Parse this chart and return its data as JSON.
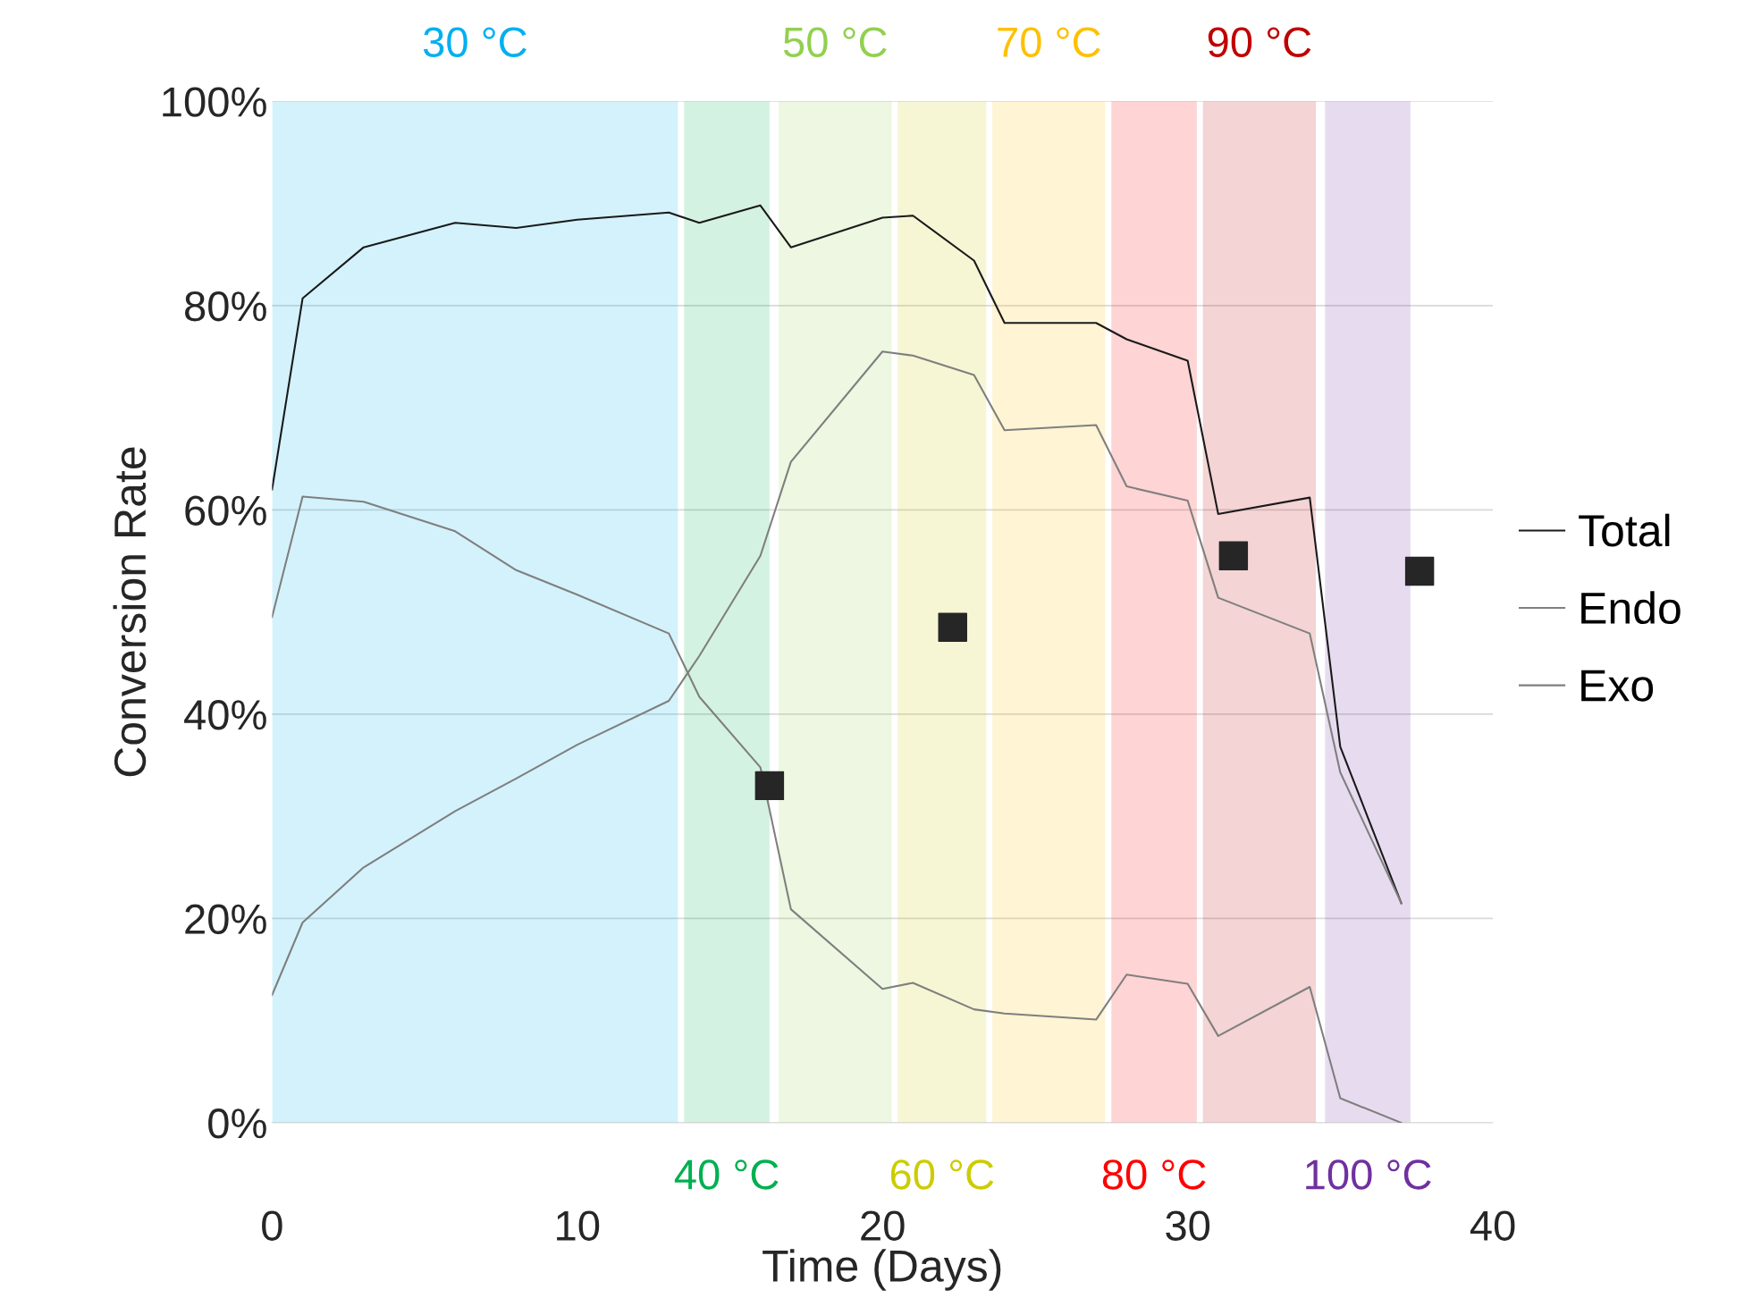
{
  "chart_data": {
    "type": "line",
    "xlabel": "Time (Days)",
    "ylabel": "Conversion Rate",
    "xlim": [
      0,
      40
    ],
    "xticks": [
      0,
      10,
      20,
      30,
      40
    ],
    "ylim": [
      0,
      100
    ],
    "yticks": [
      {
        "value": 0,
        "label": "0%"
      },
      {
        "value": 20,
        "label": "20%"
      },
      {
        "value": 40,
        "label": "40%"
      },
      {
        "value": 60,
        "label": "60%"
      },
      {
        "value": 80,
        "label": "80%"
      },
      {
        "value": 100,
        "label": "100%"
      }
    ],
    "grid": "y",
    "legend": "right",
    "line_style": "solid",
    "series": [
      {
        "name": "Total",
        "color": "#1a1a1a",
        "x": [
          0,
          1,
          3,
          6,
          8,
          10,
          13,
          14,
          16,
          17,
          20,
          21,
          23,
          24,
          27,
          28,
          30,
          31,
          34,
          35,
          37
        ],
        "values": [
          62.0,
          80.7,
          85.7,
          88.1,
          87.6,
          88.4,
          89.1,
          88.1,
          89.8,
          85.7,
          88.6,
          88.8,
          84.4,
          78.3,
          78.3,
          76.7,
          74.6,
          59.6,
          61.2,
          36.8,
          21.5
        ]
      },
      {
        "name": "Endo",
        "color": "#7f7f7f",
        "x": [
          0,
          1,
          3,
          6,
          8,
          10,
          13,
          14,
          16,
          17,
          20,
          21,
          23,
          24,
          27,
          28,
          30,
          31,
          34,
          35,
          37
        ],
        "values": [
          12.5,
          19.6,
          25.0,
          30.5,
          33.7,
          37.0,
          41.3,
          45.7,
          55.5,
          64.7,
          75.5,
          75.1,
          73.2,
          67.8,
          68.3,
          62.3,
          60.9,
          51.4,
          47.9,
          34.3,
          21.5
        ]
      },
      {
        "name": "Exo",
        "color": "#7f7f7f",
        "x": [
          0,
          1,
          3,
          6,
          8,
          10,
          13,
          14,
          16,
          17,
          20,
          21,
          23,
          24,
          27,
          28,
          30,
          31,
          34,
          35,
          37
        ],
        "values": [
          49.5,
          61.3,
          60.8,
          57.9,
          54.1,
          51.7,
          47.9,
          41.7,
          34.8,
          20.9,
          13.1,
          13.7,
          11.1,
          10.7,
          10.1,
          14.5,
          13.6,
          8.5,
          13.3,
          2.4,
          0
        ]
      },
      {
        "type": "scatter",
        "color": "#262626",
        "marker": "square",
        "x": [
          16.3,
          22.3,
          31.5,
          37.6
        ],
        "values": [
          33.0,
          48.5,
          55.5,
          54.0
        ]
      }
    ],
    "bands": [
      {
        "axis": "x",
        "from": 0,
        "to": 13.3,
        "label": "30 °C",
        "color": "#00b0f0"
      },
      {
        "axis": "x",
        "from": 13.5,
        "to": 16.3,
        "label": "40 °C",
        "color": "#00b050"
      },
      {
        "axis": "x",
        "from": 16.6,
        "to": 20.3,
        "label": "50 °C",
        "color": "#92d050"
      },
      {
        "axis": "x",
        "from": 20.5,
        "to": 23.4,
        "label": "60 °C",
        "color": "#cccc00"
      },
      {
        "axis": "x",
        "from": 23.6,
        "to": 27.3,
        "label": "70 °C",
        "color": "#ffc000"
      },
      {
        "axis": "x",
        "from": 27.5,
        "to": 30.3,
        "label": "80 °C",
        "color": "#ff0000"
      },
      {
        "axis": "x",
        "from": 30.5,
        "to": 34.2,
        "label": "90 °C",
        "color": "#c00000"
      },
      {
        "axis": "x",
        "from": 34.5,
        "to": 37.3,
        "label": "100 °C",
        "color": "#7030a0"
      }
    ]
  }
}
